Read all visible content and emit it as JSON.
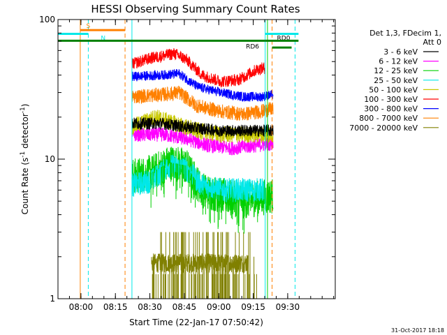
{
  "chart_data": {
    "type": "line",
    "title": "HESSI Observing Summary Count Rates",
    "xlabel": "Start Time (22-Jan-17 07:50:42)",
    "ylabel_main": "Count Rate (s",
    "ylabel_sup1": "-1",
    "ylabel_mid": " detector",
    "ylabel_sup2": "-1",
    "ylabel_end": ")",
    "x_axis": {
      "unit": "minutes from 07:50:42",
      "range": [
        -0.7,
        120
      ],
      "ticks": [
        {
          "label": "08:00",
          "value": 9.3
        },
        {
          "label": "08:15",
          "value": 24.3
        },
        {
          "label": "08:30",
          "value": 39.3
        },
        {
          "label": "08:45",
          "value": 54.3
        },
        {
          "label": "09:00",
          "value": 69.3
        },
        {
          "label": "09:15",
          "value": 84.3
        },
        {
          "label": "09:30",
          "value": 99.3
        }
      ]
    },
    "y_axis": {
      "scale": "log",
      "range": [
        1,
        100
      ],
      "ticks": [
        {
          "label": "1",
          "value": 1
        },
        {
          "label": "10",
          "value": 10
        },
        {
          "label": "100",
          "value": 100
        }
      ]
    },
    "legend": {
      "placement": "right",
      "header1": "Det 1,3, FDecim 1,",
      "header2": "Att 0",
      "entries": [
        {
          "label": "3 - 6 keV",
          "color": "#000000"
        },
        {
          "label": "6 - 12 keV",
          "color": "#ff00ff"
        },
        {
          "label": "12 - 25 keV",
          "color": "#00d000"
        },
        {
          "label": "25 - 50 keV",
          "color": "#00e8e8"
        },
        {
          "label": "50 - 100 keV",
          "color": "#c8c800"
        },
        {
          "label": "100 - 300 keV",
          "color": "#ff0000"
        },
        {
          "label": "300 - 800 keV",
          "color": "#0000ff"
        },
        {
          "label": "800 - 7000 keV",
          "color": "#ff8000"
        },
        {
          "label": "7000 - 20000 keV",
          "color": "#808000"
        }
      ]
    },
    "series": [
      {
        "name": "100 - 300 keV",
        "color": "#ff0000",
        "t_start": 31.5,
        "t_end": 89.5,
        "keyframes": [
          [
            31.5,
            48
          ],
          [
            40,
            53
          ],
          [
            50,
            57
          ],
          [
            55,
            52
          ],
          [
            62,
            40
          ],
          [
            70,
            36
          ],
          [
            78,
            37
          ],
          [
            86,
            44
          ],
          [
            89.5,
            45
          ]
        ],
        "noise": 0.05
      },
      {
        "name": "300 - 800 keV",
        "color": "#0000ff",
        "t_start": 31.5,
        "t_end": 93,
        "keyframes": [
          [
            31.5,
            39
          ],
          [
            45,
            40
          ],
          [
            52,
            41
          ],
          [
            60,
            33
          ],
          [
            70,
            30
          ],
          [
            80,
            28
          ],
          [
            88,
            28
          ],
          [
            93,
            29
          ]
        ],
        "noise": 0.04
      },
      {
        "name": "800 - 7000 keV",
        "color": "#ff8000",
        "t_start": 31.5,
        "t_end": 93,
        "keyframes": [
          [
            31.5,
            28
          ],
          [
            45,
            29
          ],
          [
            52,
            30
          ],
          [
            60,
            24
          ],
          [
            70,
            22
          ],
          [
            80,
            21
          ],
          [
            88,
            22
          ],
          [
            93,
            23
          ]
        ],
        "noise": 0.06
      },
      {
        "name": "3 - 6 keV",
        "color": "#000000",
        "t_start": 31.5,
        "t_end": 93,
        "keyframes": [
          [
            31.5,
            18
          ],
          [
            45,
            18
          ],
          [
            55,
            17
          ],
          [
            70,
            16
          ],
          [
            80,
            16
          ],
          [
            93,
            16
          ]
        ],
        "noise": 0.05
      },
      {
        "name": "50 - 100 keV",
        "color": "#c8c800",
        "t_start": 31.5,
        "t_end": 93,
        "keyframes": [
          [
            31.5,
            17
          ],
          [
            42,
            20
          ],
          [
            50,
            18
          ],
          [
            60,
            16
          ],
          [
            70,
            15
          ],
          [
            80,
            15
          ],
          [
            93,
            15
          ]
        ],
        "noise": 0.07
      },
      {
        "name": "6 - 12 keV",
        "color": "#ff00ff",
        "t_start": 31.5,
        "t_end": 93,
        "keyframes": [
          [
            31.5,
            15
          ],
          [
            45,
            15
          ],
          [
            55,
            14
          ],
          [
            65,
            12.5
          ],
          [
            75,
            12
          ],
          [
            85,
            12.5
          ],
          [
            93,
            13
          ]
        ],
        "noise": 0.06
      },
      {
        "name": "12 - 25 keV",
        "color": "#00d000",
        "t_start": 31.5,
        "t_end": 93,
        "keyframes": [
          [
            31.5,
            7.5
          ],
          [
            40,
            8
          ],
          [
            48,
            9.5
          ],
          [
            55,
            9
          ],
          [
            62,
            6
          ],
          [
            70,
            5.5
          ],
          [
            80,
            5
          ],
          [
            93,
            5.5
          ]
        ],
        "noise": 0.15
      },
      {
        "name": "25 - 50 keV",
        "color": "#00e8e8",
        "t_start": 31.5,
        "t_end": 89,
        "keyframes": [
          [
            31.5,
            6.5
          ],
          [
            40,
            7
          ],
          [
            48,
            9
          ],
          [
            55,
            8.5
          ],
          [
            62,
            6.5
          ],
          [
            70,
            6
          ],
          [
            80,
            6
          ],
          [
            89,
            6
          ]
        ],
        "noise": 0.1
      },
      {
        "name": "7000 - 20000 keV",
        "color": "#808000",
        "t_start": 40,
        "t_end": 82,
        "keyframes": [
          [
            40,
            1.8
          ],
          [
            82,
            1.8
          ]
        ],
        "noise": 0.08
      }
    ],
    "spikes": {
      "color": "#808000",
      "t_start": 40,
      "t_end": 86,
      "levels": [
        1,
        1.5,
        2,
        3
      ],
      "count": 140
    },
    "markers": {
      "solid_orange": 9.0,
      "dashed_cyan_left": 12.5,
      "dashed_orange": 28.5,
      "solid_cyan_start": 31.5,
      "solid_cyan_end": 89.5,
      "solid_green_mid": 90.5,
      "dashed_orange_right": 92.5,
      "dashed_cyan_right": 102.5
    },
    "flag_bars": [
      {
        "label": "S",
        "color": "#ff8000",
        "x0": 9.0,
        "x1": 28.5,
        "y": 84,
        "label_x": 12.5
      },
      {
        "label": "N",
        "color": "#00e8e8",
        "x0": -0.7,
        "x1": 12.5,
        "y": 79,
        "label_x": 19
      },
      {
        "label": "RD6",
        "color": "#008000",
        "x0": -0.7,
        "x1": 89.5,
        "y": 70.5,
        "label_x": 84
      },
      {
        "label": "RD0",
        "color": "#00e8e8",
        "x0": 89.5,
        "x1": 104,
        "y": 79,
        "label_x": 97.5
      },
      {
        "label": "",
        "color": "#008000",
        "x0": 89.5,
        "x1": 104,
        "y": 70.5,
        "label_x": 0
      },
      {
        "label": "",
        "color": "#008000",
        "x0": 92.5,
        "x1": 101,
        "y": 63,
        "label_x": 0
      }
    ],
    "grid": false
  },
  "footer": {
    "datestamp": "31-Oct-2017 18:18"
  }
}
